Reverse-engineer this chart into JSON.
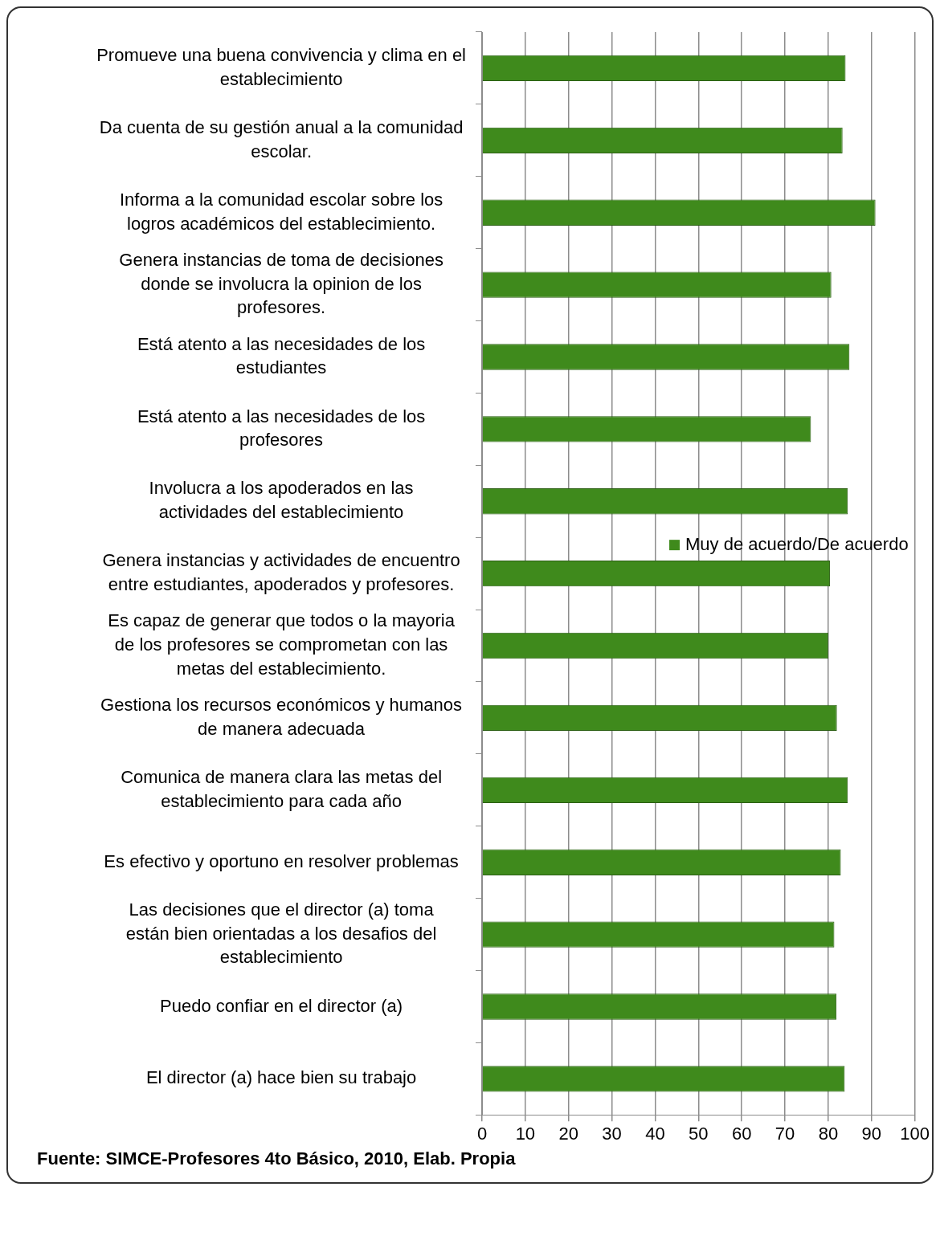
{
  "chart_data": {
    "type": "bar",
    "orientation": "horizontal",
    "categories": [
      "Promueve una buena convivencia y clima en el establecimiento",
      "Da cuenta de su gestión anual a la comunidad escolar.",
      "Informa a la comunidad escolar sobre los logros académicos del establecimiento.",
      "Genera instancias de toma de decisiones donde se involucra la opinion de los profesores.",
      "Está atento a las necesidades de los estudiantes",
      "Está atento a las necesidades de los profesores",
      "Involucra a los apoderados en las actividades del establecimiento",
      "Genera instancias y actividades de encuentro entre estudiantes, apoderados y profesores.",
      "Es capaz de generar que todos o la mayoria de los profesores se comprometan con las metas del establecimiento.",
      "Gestiona los recursos económicos y humanos de manera adecuada",
      "Comunica de manera clara las metas del establecimiento para cada año",
      "Es efectivo y oportuno en resolver problemas",
      "Las decisiones que el director (a) toma están bien orientadas a los desafios del establecimiento",
      "Puedo confiar en el director (a)",
      "El director (a) hace bien su trabajo"
    ],
    "series": [
      {
        "name": "Muy de acuerdo/De acuerdo",
        "color": "#3f8a1c",
        "values": [
          84.0,
          83.3,
          90.9,
          80.7,
          84.9,
          76.0,
          84.5,
          80.4,
          80.0,
          82.0,
          84.5,
          82.9,
          81.4,
          81.9,
          83.8
        ]
      }
    ],
    "xlim": [
      0,
      100
    ],
    "xticks": [
      0,
      10,
      20,
      30,
      40,
      50,
      60,
      70,
      80,
      90,
      100
    ],
    "grid": "x",
    "legend": "right",
    "annotations": [
      "Fuente: SIMCE-Profesores 4to Básico, 2010, Elab. Propia"
    ]
  }
}
